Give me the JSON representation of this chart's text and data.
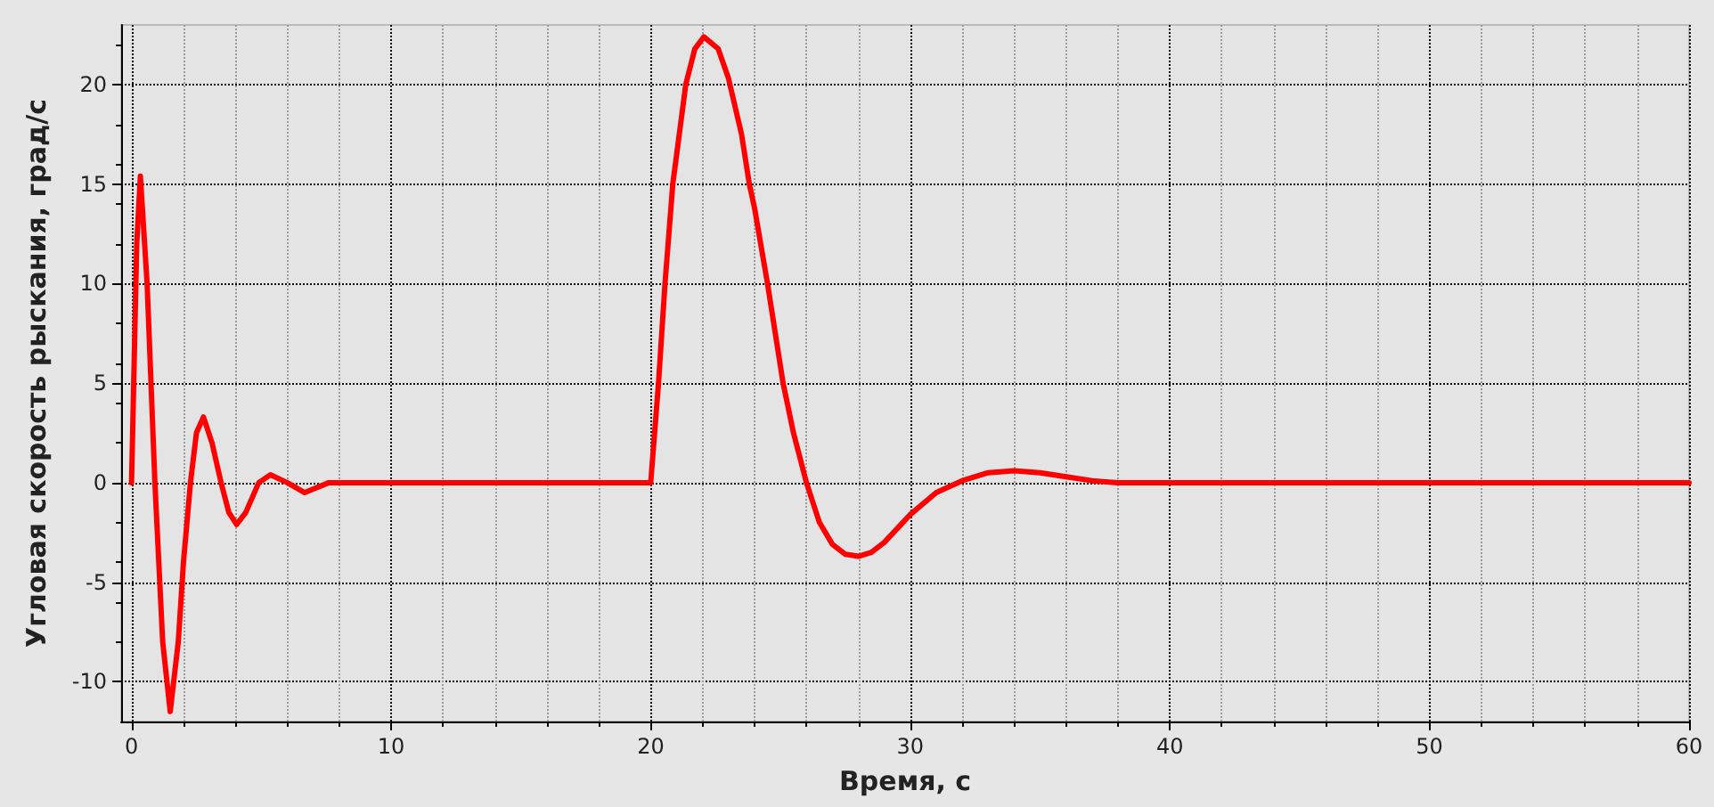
{
  "chart_data": {
    "type": "line",
    "xlabel": "Время, с",
    "ylabel": "Угловая скорость рыскания, град/с",
    "xlim": [
      -0.4,
      60
    ],
    "ylim": [
      -12,
      23
    ],
    "xticks": [
      0,
      10,
      20,
      30,
      40,
      50,
      60
    ],
    "yticks": [
      -10,
      -5,
      0,
      5,
      10,
      15,
      20
    ],
    "grid": true,
    "line_style": "solid",
    "series": [
      {
        "color": "#ff0000",
        "x": [
          0,
          0.1,
          0.2,
          0.34,
          0.6,
          0.9,
          1.2,
          1.49,
          1.8,
          2.0,
          2.27,
          2.5,
          2.77,
          3.1,
          3.45,
          3.75,
          4.05,
          4.4,
          4.9,
          5.35,
          6.0,
          6.67,
          7.6,
          8.5,
          10,
          15,
          20,
          20.3,
          20.55,
          20.85,
          21.35,
          21.7,
          22.05,
          22.6,
          23,
          23.5,
          23.8,
          24,
          24.5,
          25.1,
          25.5,
          26,
          26.5,
          27,
          27.5,
          28,
          28.5,
          29,
          30,
          31,
          32,
          33,
          34,
          35,
          36,
          37,
          38,
          42,
          50,
          60
        ],
        "values": [
          0,
          6,
          12,
          15.4,
          10,
          0,
          -8,
          -11.5,
          -8,
          -4,
          0,
          2.5,
          3.3,
          2,
          0,
          -1.5,
          -2.1,
          -1.5,
          0,
          0.4,
          0,
          -0.5,
          0,
          0,
          0,
          0,
          0,
          5,
          10,
          15,
          20,
          21.8,
          22.4,
          21.8,
          20.3,
          17.5,
          15,
          13.8,
          10,
          5,
          2.5,
          0,
          -2,
          -3.1,
          -3.6,
          -3.7,
          -3.5,
          -3.0,
          -1.6,
          -0.5,
          0.1,
          0.5,
          0.6,
          0.5,
          0.3,
          0.1,
          0,
          0,
          0,
          0
        ]
      }
    ]
  }
}
